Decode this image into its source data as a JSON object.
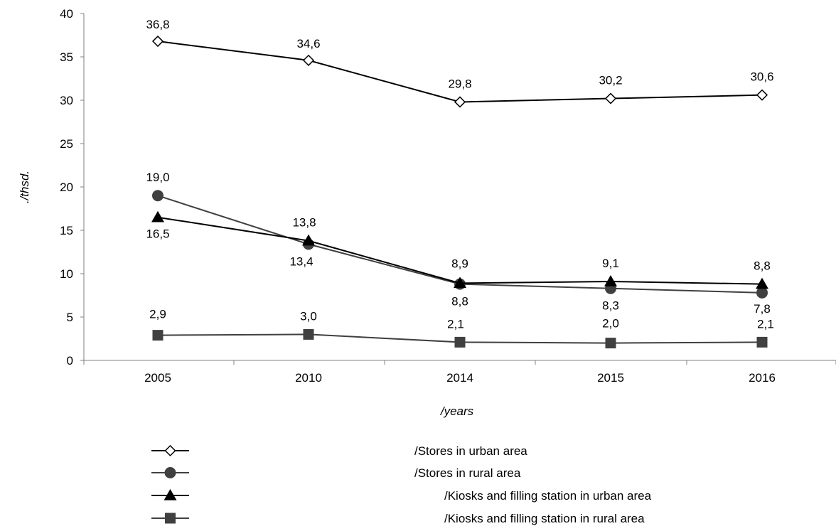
{
  "chart_data": {
    "type": "line",
    "categories": [
      "2005",
      "2010",
      "2014",
      "2015",
      "2016"
    ],
    "ylim": [
      0,
      40
    ],
    "yticks": [
      0,
      5,
      10,
      15,
      20,
      25,
      30,
      35,
      40
    ],
    "ylabel": "./thsd.",
    "xlabel": "/years",
    "grid": false,
    "legend_position": "bottom",
    "series": [
      {
        "name": "/Stores in urban area",
        "values": [
          36.8,
          34.6,
          29.8,
          30.2,
          30.6
        ],
        "labels": [
          "36,8",
          "34,6",
          "29,8",
          "30,2",
          "30,6"
        ],
        "marker": "diamond-open",
        "color": "#000000"
      },
      {
        "name": "/Stores in rural area",
        "values": [
          19.0,
          13.4,
          8.8,
          8.3,
          7.8
        ],
        "labels": [
          "19,0",
          "13,4",
          "8,8",
          "8,3",
          "7,8"
        ],
        "marker": "circle",
        "color": "#404040"
      },
      {
        "name": "/Kiosks and filling station in urban area",
        "values": [
          16.5,
          13.8,
          8.9,
          9.1,
          8.8
        ],
        "labels": [
          "16,5",
          "13,8",
          "8,9",
          "9,1",
          "8,8"
        ],
        "marker": "triangle",
        "color": "#000000"
      },
      {
        "name": "/Kiosks and filling station in rural area",
        "values": [
          2.9,
          3.0,
          2.1,
          2.0,
          2.1
        ],
        "labels": [
          "2,9",
          "3,0",
          "2,1",
          "2,0",
          "2,1"
        ],
        "marker": "square",
        "color": "#404040"
      }
    ]
  }
}
